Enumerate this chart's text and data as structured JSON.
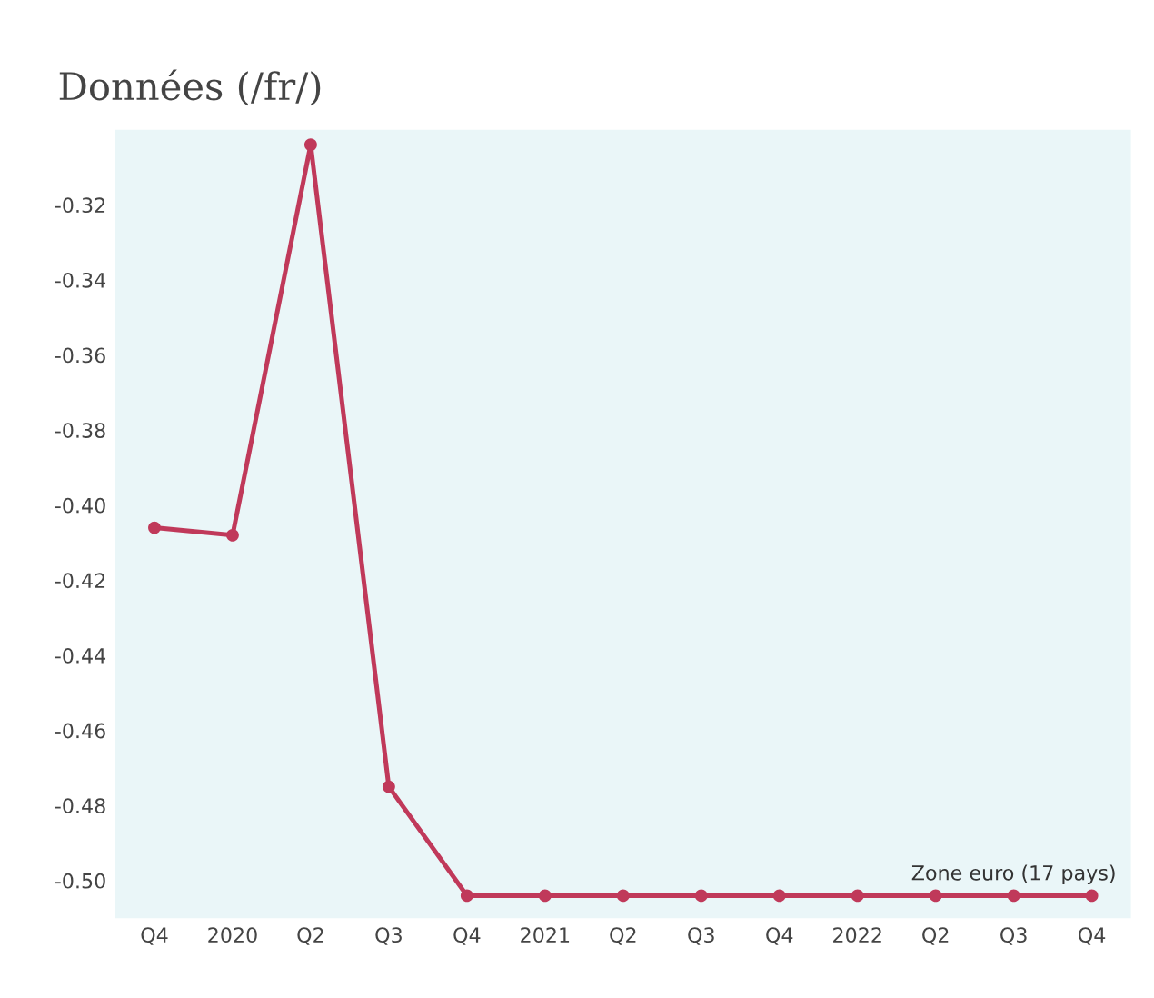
{
  "chart_data": {
    "type": "line",
    "title": "Données (/fr/)",
    "categories": [
      "Q4",
      "2020",
      "Q2",
      "Q3",
      "Q4",
      "2021",
      "Q2",
      "Q3",
      "Q4",
      "2022",
      "Q2",
      "Q3",
      "Q4"
    ],
    "series": [
      {
        "name": "Zone euro (17 pays)",
        "color": "#c0395a",
        "values": [
          -0.406,
          -0.408,
          -0.304,
          -0.475,
          -0.504,
          -0.504,
          -0.504,
          -0.504,
          -0.504,
          -0.504,
          -0.504,
          -0.504,
          -0.504
        ]
      }
    ],
    "ylim": [
      -0.51,
      -0.3
    ],
    "yticks": [
      -0.32,
      -0.34,
      -0.36,
      -0.38,
      {
        "value": -0.4,
        "label": "-0.40"
      },
      -0.42,
      -0.44,
      -0.46,
      -0.48,
      {
        "value": -0.5,
        "label": "-0.50"
      }
    ],
    "marker": "circle",
    "line_style": "solid",
    "grid": false,
    "legend": false
  }
}
